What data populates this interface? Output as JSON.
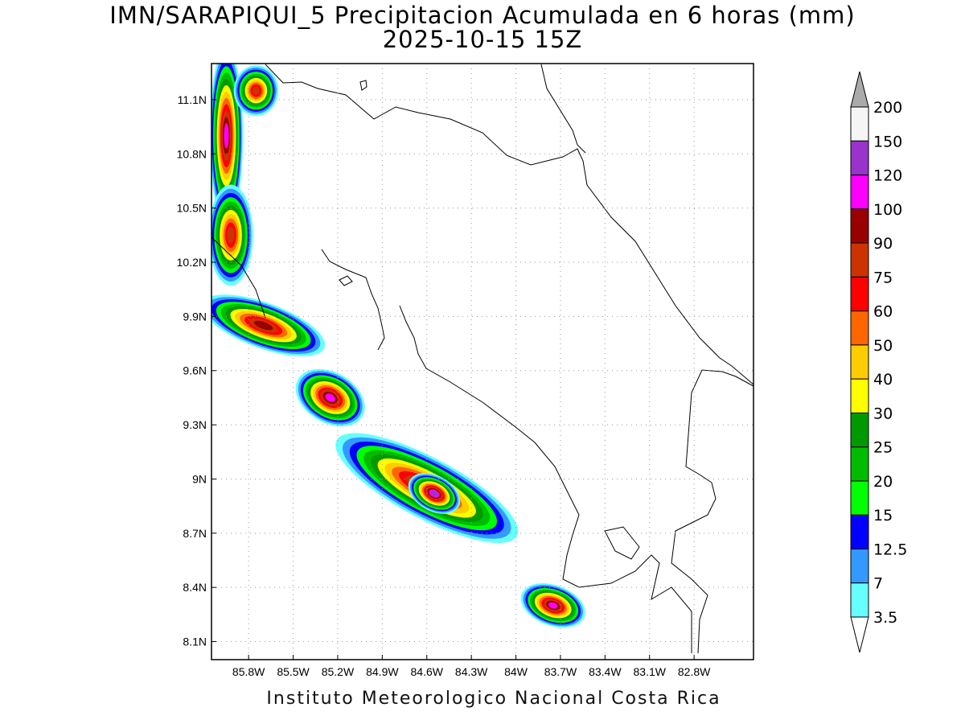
{
  "title": {
    "line1": "IMN/SARAPIQUI_5 Precipitacion Acumulada en 6 horas (mm)",
    "line2": "2025-10-15 15Z"
  },
  "footer": "Instituto Meteorologico Nacional Costa Rica",
  "map": {
    "lon_range": [
      -86.05,
      -82.4
    ],
    "lat_range": [
      8.0,
      11.3
    ],
    "lat_ticks": [
      {
        "value": 11.1,
        "label": "11.1N"
      },
      {
        "value": 10.8,
        "label": "10.8N"
      },
      {
        "value": 10.5,
        "label": "10.5N"
      },
      {
        "value": 10.2,
        "label": "10.2N"
      },
      {
        "value": 9.9,
        "label": "9.9N"
      },
      {
        "value": 9.6,
        "label": "9.6N"
      },
      {
        "value": 9.3,
        "label": "9.3N"
      },
      {
        "value": 9.0,
        "label": "9N"
      },
      {
        "value": 8.7,
        "label": "8.7N"
      },
      {
        "value": 8.4,
        "label": "8.4N"
      },
      {
        "value": 8.1,
        "label": "8.1N"
      }
    ],
    "lon_ticks": [
      {
        "value": -85.8,
        "label": "85.8W"
      },
      {
        "value": -85.5,
        "label": "85.5W"
      },
      {
        "value": -85.2,
        "label": "85.2W"
      },
      {
        "value": -84.9,
        "label": "84.9W"
      },
      {
        "value": -84.6,
        "label": "84.6W"
      },
      {
        "value": -84.3,
        "label": "84.3W"
      },
      {
        "value": -84.0,
        "label": "84W"
      },
      {
        "value": -83.7,
        "label": "83.7W"
      },
      {
        "value": -83.4,
        "label": "83.4W"
      },
      {
        "value": -83.1,
        "label": "83.1W"
      },
      {
        "value": -82.8,
        "label": "82.8W"
      }
    ],
    "grid": "dotted"
  },
  "colorbar": {
    "levels": [
      "200",
      "150",
      "120",
      "100",
      "90",
      "75",
      "60",
      "50",
      "40",
      "30",
      "25",
      "20",
      "15",
      "12.5",
      "7",
      "3.5"
    ],
    "colors": [
      "#f5f5f5",
      "#9933cc",
      "#ff00ff",
      "#990000",
      "#cc3300",
      "#ff0000",
      "#ff6600",
      "#ffcc00",
      "#ffff00",
      "#009900",
      "#00bb00",
      "#00ff00",
      "#0000ff",
      "#3399ff",
      "#66ffff"
    ],
    "top_arrow_color": "#aaaaaa",
    "bottom_arrow_color": "#ffffff"
  },
  "rain_bands": [
    {
      "lon": -85.95,
      "lat": 10.9,
      "rx": 0.09,
      "ry": 0.35,
      "rot": 0,
      "level": 12
    },
    {
      "lon": -85.75,
      "lat": 11.15,
      "rx": 0.12,
      "ry": 0.1,
      "rot": 0,
      "level": 10
    },
    {
      "lon": -85.92,
      "lat": 10.35,
      "rx": 0.12,
      "ry": 0.2,
      "rot": 0,
      "level": 10
    },
    {
      "lon": -85.7,
      "lat": 9.85,
      "rx": 0.35,
      "ry": 0.09,
      "rot": 20,
      "level": 11
    },
    {
      "lon": -85.25,
      "lat": 9.45,
      "rx": 0.2,
      "ry": 0.1,
      "rot": 30,
      "level": 12
    },
    {
      "lon": -84.6,
      "lat": 8.95,
      "rx": 0.55,
      "ry": 0.12,
      "rot": 28,
      "level": 11
    },
    {
      "lon": -84.55,
      "lat": 8.92,
      "rx": 0.15,
      "ry": 0.07,
      "rot": 28,
      "level": 13
    },
    {
      "lon": -83.75,
      "lat": 8.3,
      "rx": 0.18,
      "ry": 0.08,
      "rot": 20,
      "level": 12
    }
  ]
}
